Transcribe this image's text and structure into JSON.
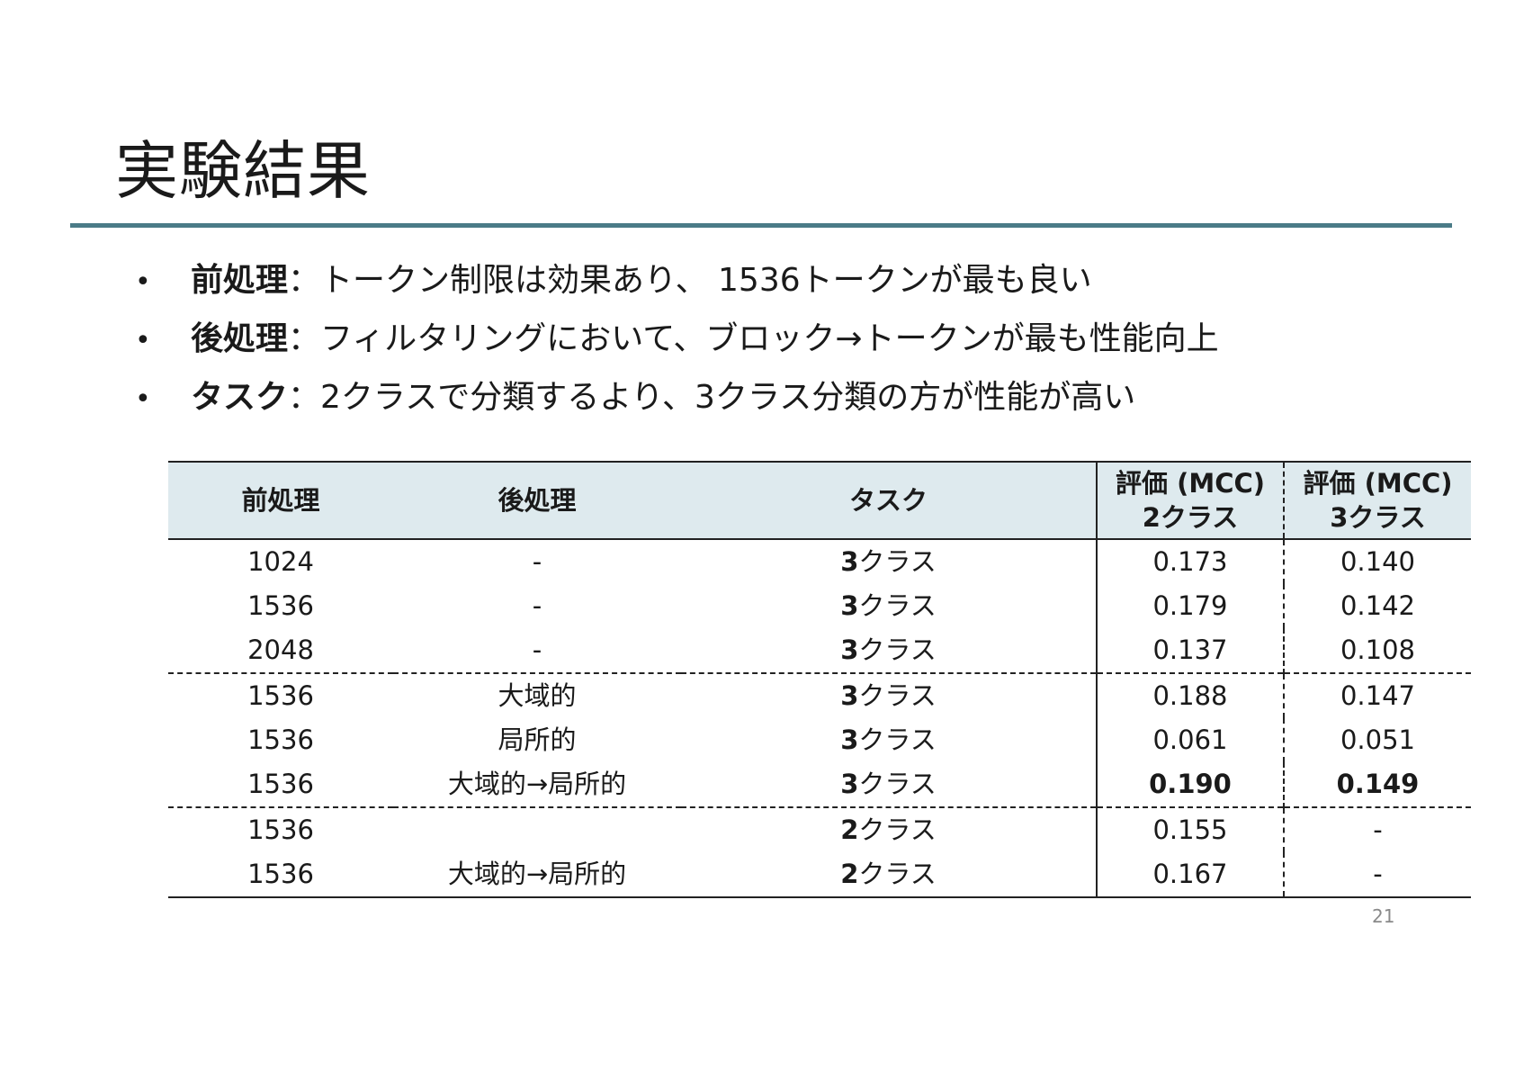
{
  "title": "実験結果",
  "bullets": [
    {
      "label": "前処理",
      "text": "：トークン制限は効果あり、 1536トークンが最も良い"
    },
    {
      "label": "後処理",
      "text": "：フィルタリングにおいて、ブロック→トークンが最も性能向上"
    },
    {
      "label": "タスク",
      "text": "：2クラスで分類するより、3クラス分類の方が性能が高い"
    }
  ],
  "table": {
    "headers": {
      "preprocess": "前処理",
      "postprocess": "後処理",
      "task": "タスク",
      "eval2_line1": "評価 (MCC)",
      "eval2_line2": "2クラス",
      "eval3_line1": "評価 (MCC)",
      "eval3_line2": "3クラス"
    },
    "rows": [
      {
        "pre": "1024",
        "post": "-",
        "task_num": "3",
        "task_suffix": "クラス",
        "mcc2": "0.173",
        "mcc3": "0.140"
      },
      {
        "pre": "1536",
        "post": "-",
        "task_num": "3",
        "task_suffix": "クラス",
        "mcc2": "0.179",
        "mcc3": "0.142"
      },
      {
        "pre": "2048",
        "post": "-",
        "task_num": "3",
        "task_suffix": "クラス",
        "mcc2": "0.137",
        "mcc3": "0.108"
      },
      {
        "pre": "1536",
        "post": "大域的",
        "task_num": "3",
        "task_suffix": "クラス",
        "mcc2": "0.188",
        "mcc3": "0.147"
      },
      {
        "pre": "1536",
        "post": "局所的",
        "task_num": "3",
        "task_suffix": "クラス",
        "mcc2": "0.061",
        "mcc3": "0.051"
      },
      {
        "pre": "1536",
        "post": "大域的→局所的",
        "task_num": "3",
        "task_suffix": "クラス",
        "mcc2": "0.190",
        "mcc3": "0.149"
      },
      {
        "pre": "1536",
        "post": "",
        "task_num": "2",
        "task_suffix": "クラス",
        "mcc2": "0.155",
        "mcc3": "-"
      },
      {
        "pre": "1536",
        "post": "大域的→局所的",
        "task_num": "2",
        "task_suffix": "クラス",
        "mcc2": "0.167",
        "mcc3": "-"
      }
    ]
  },
  "page_number": "21",
  "colors": {
    "title_rule": "#4a7b87",
    "header_bg": "#deeaee"
  }
}
